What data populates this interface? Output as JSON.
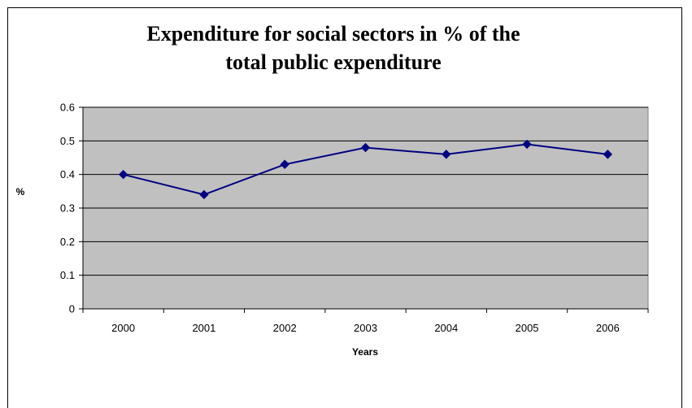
{
  "chart_data": {
    "type": "line",
    "title_lines": [
      "Expenditure for social sectors in % of the",
      "total public expenditure"
    ],
    "xlabel": "Years",
    "ylabel": "%",
    "categories": [
      "2000",
      "2001",
      "2002",
      "2003",
      "2004",
      "2005",
      "2006"
    ],
    "series": [
      {
        "values": [
          0.4,
          0.34,
          0.43,
          0.48,
          0.46,
          0.49,
          0.46
        ],
        "color": "#000080"
      }
    ],
    "ylim": [
      0,
      0.6
    ],
    "yticks": [
      "0",
      "0.1",
      "0.2",
      "0.3",
      "0.4",
      "0.5",
      "0.6"
    ],
    "grid": true,
    "legend": "none",
    "plot_background": "#c0c0c0"
  }
}
